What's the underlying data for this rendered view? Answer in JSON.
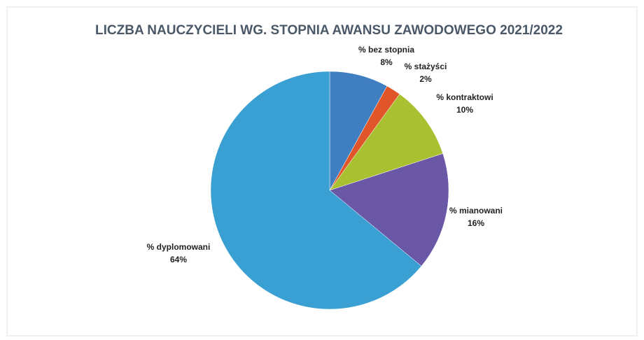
{
  "chart_data": {
    "type": "pie",
    "title": "LICZBA NAUCZYCIELI WG. STOPNIA AWANSU ZAWODOWEGO 2021/2022",
    "categories": [
      "% bez stopnia",
      "% stażyści",
      "% kontraktowi",
      "% mianowani",
      "% dyplomowani"
    ],
    "values": [
      8,
      2,
      10,
      16,
      64
    ],
    "value_labels": [
      "8%",
      "2%",
      "10%",
      "16%",
      "64%"
    ],
    "colors": [
      "#3f7ec1",
      "#e0562a",
      "#a9c131",
      "#6a57a6",
      "#3a9fd2"
    ]
  }
}
